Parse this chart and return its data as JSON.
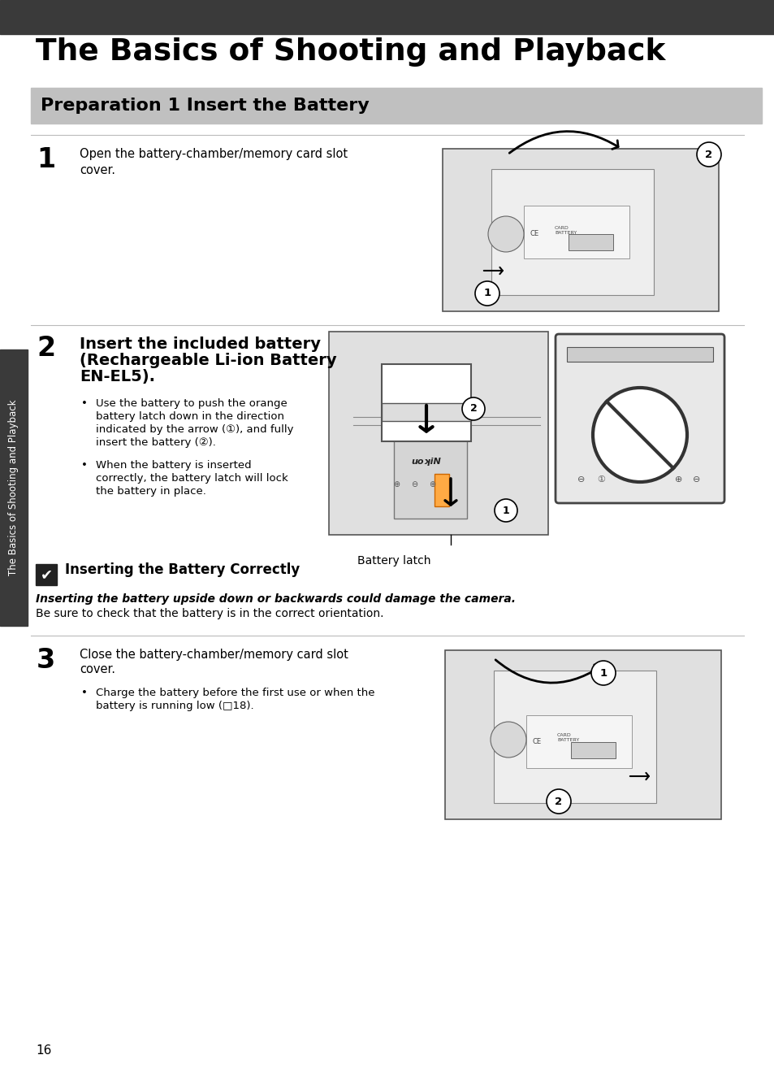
{
  "page_number": "16",
  "top_bar_color": "#3a3a3a",
  "top_bar_height": 42,
  "bg_color": "#ffffff",
  "title": "The Basics of Shooting and Playback",
  "title_fontsize": 27,
  "section_bg": "#c0c0c0",
  "section_text": "Preparation 1 Insert the Battery",
  "section_fontsize": 16,
  "sidebar_color": "#3a3a3a",
  "sidebar_text": "The Basics of Shooting and Playback",
  "sidebar_fontsize": 8.5,
  "step1_num": "1",
  "step1_text_line1": "Open the battery-chamber/memory card slot",
  "step1_text_line2": "cover.",
  "step2_num": "2",
  "step2_header_line1": "Insert the included battery",
  "step2_header_line2": "(Rechargeable Li-ion Battery",
  "step2_header_line3": "EN-EL5).",
  "step2_bullet1_line1": "Use the battery to push the orange",
  "step2_bullet1_line2": "battery latch down in the direction",
  "step2_bullet1_line3": "indicated by the arrow (①), and fully",
  "step2_bullet1_line4": "insert the battery (②).",
  "step2_bullet2_line1": "When the battery is inserted",
  "step2_bullet2_line2": "correctly, the battery latch will lock",
  "step2_bullet2_line3": "the battery in place.",
  "battery_latch_label": "Battery latch",
  "note_title": "Inserting the Battery Correctly",
  "note_bold": "Inserting the battery upside down or backwards could damage the camera.",
  "note_normal": " Be sure to check that the battery is in the correct orientation.",
  "step3_num": "3",
  "step3_text_line1": "Close the battery-chamber/memory card slot",
  "step3_text_line2": "cover.",
  "step3_bullet_line1": "Charge the battery before the first use or when the",
  "step3_bullet_line2": "battery is running low (□18).",
  "footer_page": "16",
  "line_color": "#bbbbbb",
  "text_color": "#000000",
  "step_num_fontsize": 24,
  "body_fontsize": 10.5,
  "bullet_fontsize": 9.5,
  "img_face_color": "#e0e0e0",
  "img_edge_color": "#555555"
}
